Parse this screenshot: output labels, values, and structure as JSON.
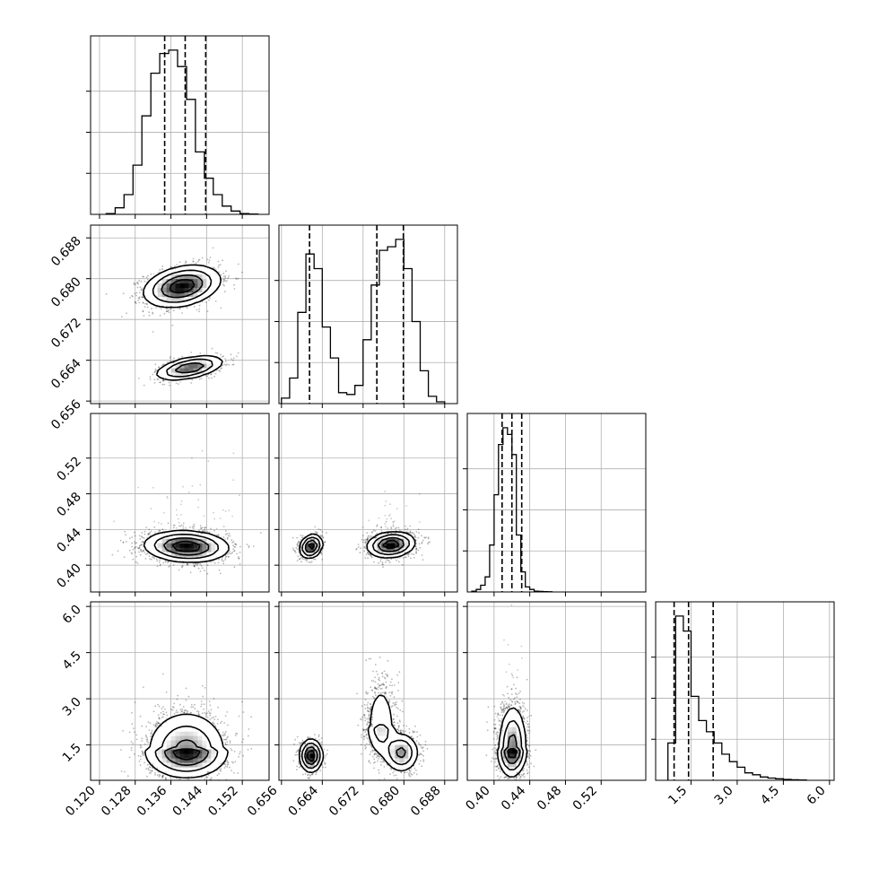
{
  "chart_data": {
    "type": "corner",
    "parameters": 4,
    "colors": {
      "line": "#000000",
      "grid": "#b0b0b0",
      "fill_dark": "#000000",
      "fill_light": "#ffffff"
    },
    "axes": [
      {
        "range": [
          0.118,
          0.158
        ],
        "ticks": [
          0.12,
          0.128,
          0.136,
          0.144,
          0.152
        ],
        "tick_labels": [
          "0.120",
          "0.128",
          "0.136",
          "0.144",
          "0.152"
        ]
      },
      {
        "range": [
          0.6555,
          0.6905
        ],
        "ticks": [
          0.656,
          0.664,
          0.672,
          0.68,
          0.688
        ],
        "tick_labels": [
          "0.656",
          "0.664",
          "0.672",
          "0.680",
          "0.688"
        ]
      },
      {
        "range": [
          0.37,
          0.57
        ],
        "ticks": [
          0.4,
          0.44,
          0.48,
          0.52
        ],
        "tick_labels": [
          "0.40",
          "0.44",
          "0.48",
          "0.52"
        ]
      },
      {
        "range": [
          0.35,
          6.15
        ],
        "ticks": [
          1.5,
          3.0,
          4.5,
          6.0
        ],
        "tick_labels": [
          "1.5",
          "3.0",
          "4.5",
          "6.0"
        ]
      }
    ],
    "histograms": [
      {
        "bins": [
          0.1225,
          0.1245,
          0.1265,
          0.1285,
          0.1305,
          0.1325,
          0.1345,
          0.1365,
          0.1385,
          0.1405,
          0.1425,
          0.1445,
          0.1465,
          0.1485,
          0.1505,
          0.1525,
          0.1545
        ],
        "counts": [
          0.005,
          0.04,
          0.12,
          0.3,
          0.6,
          0.86,
          0.98,
          1.0,
          0.9,
          0.7,
          0.38,
          0.22,
          0.12,
          0.05,
          0.02,
          0.005,
          0.002
        ],
        "quantiles": [
          0.1346,
          0.1392,
          0.1438
        ]
      },
      {
        "bins": [
          0.6568,
          0.6584,
          0.66,
          0.6616,
          0.6632,
          0.6648,
          0.6664,
          0.668,
          0.6696,
          0.6712,
          0.6728,
          0.6744,
          0.676,
          0.6776,
          0.6792,
          0.6808,
          0.6824,
          0.684,
          0.6856,
          0.6872
        ],
        "counts": [
          0.03,
          0.14,
          0.5,
          0.82,
          0.74,
          0.42,
          0.25,
          0.06,
          0.05,
          0.1,
          0.35,
          0.65,
          0.84,
          0.86,
          0.9,
          0.74,
          0.45,
          0.18,
          0.04,
          0.01
        ],
        "quantiles": [
          0.6615,
          0.6747,
          0.6799
        ]
      },
      {
        "bins": [
          0.3775,
          0.3825,
          0.3875,
          0.3925,
          0.3975,
          0.4025,
          0.4075,
          0.4125,
          0.4175,
          0.4225,
          0.4275,
          0.4325,
          0.4375,
          0.4425,
          0.4475,
          0.4525,
          0.4575,
          0.4625
        ],
        "counts": [
          0.005,
          0.015,
          0.04,
          0.09,
          0.28,
          0.58,
          0.88,
          0.98,
          0.94,
          0.82,
          0.34,
          0.12,
          0.03,
          0.015,
          0.005,
          0.003,
          0.002,
          0.001
        ],
        "quantiles": [
          0.409,
          0.42,
          0.431
        ]
      },
      {
        "bins": [
          0.875,
          1.125,
          1.375,
          1.625,
          1.875,
          2.125,
          2.375,
          2.625,
          2.875,
          3.125,
          3.375,
          3.625,
          3.875,
          4.125,
          4.375,
          4.625,
          4.875,
          5.125
        ],
        "counts": [
          0.2,
          0.88,
          0.8,
          0.45,
          0.32,
          0.26,
          0.2,
          0.14,
          0.1,
          0.07,
          0.04,
          0.03,
          0.018,
          0.012,
          0.008,
          0.005,
          0.003,
          0.002
        ],
        "quantiles": [
          0.95,
          1.42,
          2.22
        ]
      }
    ],
    "pairs": [
      {
        "row": 1,
        "col": 0,
        "modes": [
          {
            "mean": [
              0.1385,
              0.6785
            ],
            "sd": [
              0.0042,
              0.002
            ],
            "corr": 0.3,
            "weight": 0.7,
            "n": 1600
          },
          {
            "mean": [
              0.1402,
              0.6625
            ],
            "sd": [
              0.0038,
              0.0012
            ],
            "corr": 0.5,
            "weight": 0.3,
            "n": 700
          }
        ]
      },
      {
        "row": 2,
        "col": 0,
        "modes": [
          {
            "mean": [
              0.1395,
              0.421
            ],
            "sd": [
              0.0046,
              0.0085
            ],
            "corr": -0.1,
            "weight": 1.0,
            "n": 2100,
            "tail": 60
          }
        ]
      },
      {
        "row": 2,
        "col": 1,
        "modes": [
          {
            "mean": [
              0.6618,
              0.421
            ],
            "sd": [
              0.0011,
              0.0065
            ],
            "corr": 0.2,
            "weight": 0.3,
            "n": 700
          },
          {
            "mean": [
              0.6775,
              0.423
            ],
            "sd": [
              0.0023,
              0.007
            ],
            "corr": 0.15,
            "weight": 0.7,
            "n": 1500,
            "tail": 50
          }
        ]
      },
      {
        "row": 3,
        "col": 0,
        "modes": [
          {
            "mean": [
              0.1395,
              1.3
            ],
            "sd": [
              0.0045,
              0.42
            ],
            "corr": 0.0,
            "weight": 1.0,
            "n": 2200,
            "skew": 0.55
          }
        ]
      },
      {
        "row": 3,
        "col": 1,
        "modes": [
          {
            "mean": [
              0.6618,
              1.15
            ],
            "sd": [
              0.0011,
              0.26
            ],
            "corr": 0.0,
            "weight": 0.3,
            "n": 700
          },
          {
            "mean": [
              0.6755,
              2.1
            ],
            "sd": [
              0.0015,
              0.5
            ],
            "corr": 0.0,
            "weight": 0.35,
            "n": 900,
            "skew": 0.5
          },
          {
            "mean": [
              0.6795,
              1.25
            ],
            "sd": [
              0.0017,
              0.32
            ],
            "corr": 0.0,
            "weight": 0.35,
            "n": 800
          }
        ]
      },
      {
        "row": 3,
        "col": 2,
        "modes": [
          {
            "mean": [
              0.4205,
              1.4
            ],
            "sd": [
              0.0078,
              0.45
            ],
            "corr": 0.05,
            "weight": 1.0,
            "n": 2200,
            "skew": 0.55,
            "tail": 40
          }
        ]
      }
    ]
  }
}
